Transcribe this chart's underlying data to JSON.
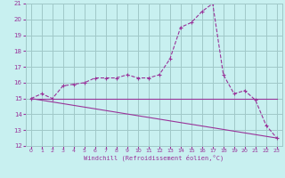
{
  "xlabel": "Windchill (Refroidissement éolien,°C)",
  "background_color": "#c8f0f0",
  "grid_color": "#a0c8c8",
  "line_color": "#993399",
  "xlim": [
    -0.5,
    23.5
  ],
  "ylim": [
    12,
    21
  ],
  "yticks": [
    12,
    13,
    14,
    15,
    16,
    17,
    18,
    19,
    20,
    21
  ],
  "xticks": [
    0,
    1,
    2,
    3,
    4,
    5,
    6,
    7,
    8,
    9,
    10,
    11,
    12,
    13,
    14,
    15,
    16,
    17,
    18,
    19,
    20,
    21,
    22,
    23
  ],
  "curve1_x": [
    0,
    1,
    2,
    3,
    4,
    5,
    6,
    7,
    8,
    9,
    10,
    11,
    12,
    13,
    14,
    15,
    16,
    17,
    18,
    19,
    20,
    21,
    22,
    23
  ],
  "curve1_y": [
    15.0,
    15.3,
    15.0,
    15.8,
    15.9,
    16.0,
    16.3,
    16.3,
    16.3,
    16.5,
    16.3,
    16.3,
    16.5,
    17.5,
    19.5,
    19.8,
    20.5,
    21.0,
    16.5,
    15.3,
    15.5,
    14.9,
    13.3,
    12.5
  ],
  "curve2_x": [
    0,
    1,
    2,
    3,
    4,
    5,
    6,
    7,
    8,
    9,
    10,
    11,
    12,
    13,
    14,
    15,
    16,
    17,
    18,
    19,
    20,
    21,
    22,
    23
  ],
  "curve2_y": [
    15.0,
    15.0,
    15.0,
    15.0,
    15.0,
    15.0,
    15.0,
    15.0,
    15.0,
    15.0,
    15.0,
    15.0,
    15.0,
    15.0,
    15.0,
    15.0,
    15.0,
    15.0,
    15.0,
    15.0,
    15.0,
    15.0,
    15.0,
    15.0
  ],
  "curve3_x": [
    0,
    23
  ],
  "curve3_y": [
    15.0,
    12.5
  ]
}
